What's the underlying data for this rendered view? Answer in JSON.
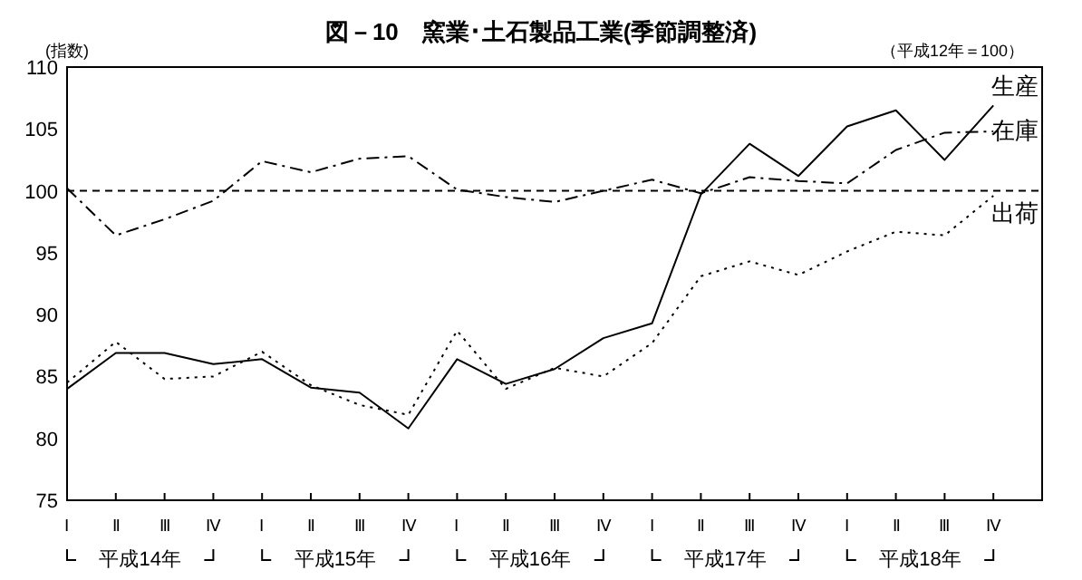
{
  "chart_data": {
    "type": "line",
    "title": "図－10　窯業･土石製品工業(季節調整済)",
    "subtitle": "（平成12年＝100）",
    "ylabel": "(指数)",
    "categories": [
      "Ⅰ",
      "Ⅱ",
      "Ⅲ",
      "Ⅳ",
      "Ⅰ",
      "Ⅱ",
      "Ⅲ",
      "Ⅳ",
      "Ⅰ",
      "Ⅱ",
      "Ⅲ",
      "Ⅳ",
      "Ⅰ",
      "Ⅱ",
      "Ⅲ",
      "Ⅳ",
      "Ⅰ",
      "Ⅱ",
      "Ⅲ",
      "Ⅳ"
    ],
    "annotations": [
      "平成14年",
      "平成15年",
      "平成16年",
      "平成17年",
      "平成18年"
    ],
    "ylim": [
      75,
      110
    ],
    "yticks": [
      75,
      80,
      85,
      90,
      95,
      100,
      105,
      110
    ],
    "grid": false,
    "ref_lines": [
      {
        "axis": "y",
        "value": 100,
        "color": "#000000",
        "line_style": "dashed"
      }
    ],
    "series": [
      {
        "name": "生産",
        "color": "#000000",
        "line_style": "solid",
        "values": [
          84.0,
          86.9,
          86.9,
          86.0,
          86.4,
          84.1,
          83.7,
          80.8,
          86.4,
          84.4,
          85.6,
          88.1,
          89.3,
          99.7,
          103.8,
          101.2,
          105.2,
          106.5,
          102.5,
          106.9
        ]
      },
      {
        "name": "在庫",
        "color": "#000000",
        "line_style": "dashdot",
        "values": [
          100.2,
          96.4,
          97.7,
          99.2,
          102.4,
          101.5,
          102.6,
          102.8,
          100.1,
          99.5,
          99.1,
          100.0,
          100.9,
          99.8,
          101.1,
          100.8,
          100.6,
          103.3,
          104.7,
          104.8
        ]
      },
      {
        "name": "出荷",
        "color": "#000000",
        "line_style": "dotted",
        "values": [
          84.5,
          87.8,
          84.8,
          85.0,
          87.0,
          84.3,
          82.7,
          81.9,
          88.7,
          84.0,
          85.7,
          85.0,
          87.7,
          93.1,
          94.3,
          93.2,
          95.1,
          96.7,
          96.4,
          99.6
        ]
      }
    ]
  }
}
